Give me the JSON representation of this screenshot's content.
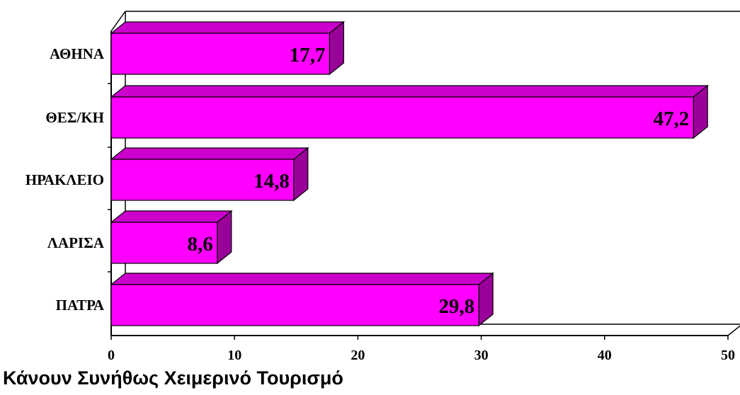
{
  "chart_data": {
    "type": "bar",
    "orientation": "horizontal",
    "style": "3d",
    "categories": [
      "ΑΘΗΝΑ",
      "ΘΕΣ/ΚΗ",
      "ΗΡΑΚΛΕΙΟ",
      "ΛΑΡΙΣΑ",
      "ΠΑΤΡΑ"
    ],
    "values": [
      17.7,
      47.2,
      14.8,
      8.6,
      29.8
    ],
    "data_labels": [
      "17,7",
      "47,2",
      "14,8",
      "8,6",
      "29,8"
    ],
    "xlim": [
      0,
      50
    ],
    "xticks": [
      0,
      10,
      20,
      30,
      40,
      50
    ],
    "grid": false,
    "legend": "none",
    "bar_color": "#ff00ff",
    "bar_top_color": "#cc00cc",
    "bar_side_color": "#990099"
  },
  "caption": "Κάνουν Συνήθως Χειμερινό Τουρισμό"
}
